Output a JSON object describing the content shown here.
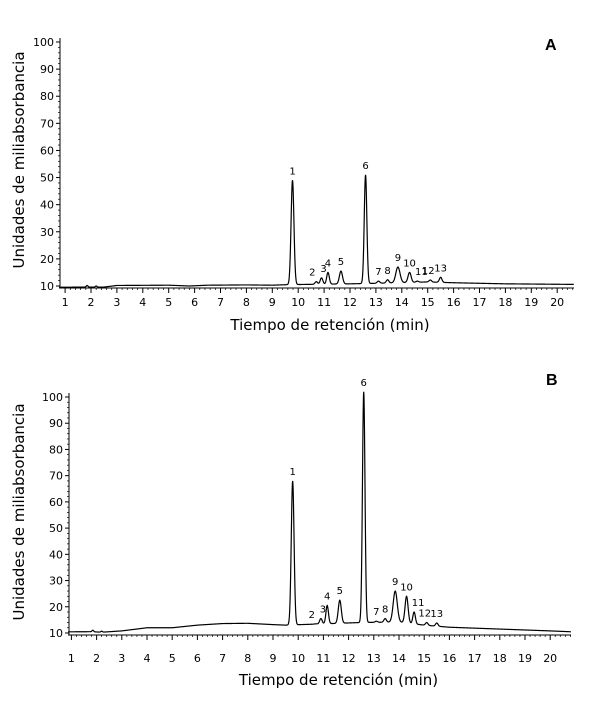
{
  "chart_data": [
    {
      "type": "line",
      "panel_label": "A",
      "xlabel": "Tiempo de retención (min)",
      "ylabel": "Unidades de miliabsorbancia",
      "xlim": [
        0,
        21
      ],
      "ylim": [
        10,
        100
      ],
      "x_ticks": [
        1,
        2,
        3,
        4,
        5,
        6,
        7,
        8,
        9,
        10,
        11,
        12,
        13,
        14,
        15,
        16,
        17,
        18,
        19,
        20
      ],
      "y_ticks": [
        10,
        20,
        30,
        40,
        50,
        60,
        70,
        80,
        90,
        100
      ],
      "grid": false,
      "series": [
        {
          "baseline": [
            [
              0,
              9.5
            ],
            [
              1.8,
              9.6
            ],
            [
              2.5,
              9.6
            ],
            [
              3,
              10.2
            ],
            [
              5,
              10.3
            ],
            [
              5.8,
              10.0
            ],
            [
              6.5,
              10.3
            ],
            [
              8,
              10.4
            ],
            [
              9,
              10.3
            ],
            [
              9.6,
              10.5
            ],
            [
              12,
              10.8
            ],
            [
              13,
              11.0
            ],
            [
              15,
              11.5
            ],
            [
              16,
              11.2
            ],
            [
              18,
              10.8
            ],
            [
              20.5,
              10.6
            ],
            [
              21,
              10.6
            ]
          ],
          "peaks": [
            {
              "label": "1",
              "x": 9.78,
              "y": 49
            },
            {
              "label": "2",
              "x": 10.7,
              "y": 11.6
            },
            {
              "label": "3",
              "x": 10.9,
              "y": 13
            },
            {
              "label": "4",
              "x": 11.15,
              "y": 15
            },
            {
              "label": "5",
              "x": 11.65,
              "y": 15.5
            },
            {
              "label": "6",
              "x": 12.6,
              "y": 51
            },
            {
              "label": "7",
              "x": 13.1,
              "y": 11.8
            },
            {
              "label": "8",
              "x": 13.45,
              "y": 12.3
            },
            {
              "label": "9",
              "x": 13.85,
              "y": 17
            },
            {
              "label": "10",
              "x": 14.3,
              "y": 15
            },
            {
              "label": "11",
              "x": 14.6,
              "y": 11.8
            },
            {
              "label": "12",
              "x": 15.1,
              "y": 12.2
            },
            {
              "label": "13",
              "x": 15.5,
              "y": 13.2
            }
          ]
        }
      ]
    },
    {
      "type": "line",
      "panel_label": "B",
      "xlabel": "Tiempo de retención (min)",
      "ylabel": "Unidades de miliabsorbancia",
      "xlim": [
        0,
        21
      ],
      "ylim": [
        10,
        100
      ],
      "x_ticks": [
        1,
        2,
        3,
        4,
        5,
        6,
        7,
        8,
        9,
        10,
        11,
        12,
        13,
        14,
        15,
        16,
        17,
        18,
        19,
        20
      ],
      "y_ticks": [
        10,
        20,
        30,
        40,
        50,
        60,
        70,
        80,
        90,
        100
      ],
      "grid": false,
      "series": [
        {
          "baseline": [
            [
              0,
              10.4
            ],
            [
              1.8,
              10.5
            ],
            [
              2.2,
              10.3
            ],
            [
              3,
              10.8
            ],
            [
              4,
              12.0
            ],
            [
              5,
              12.0
            ],
            [
              6,
              13.0
            ],
            [
              7,
              13.6
            ],
            [
              8,
              13.7
            ],
            [
              9,
              13.2
            ],
            [
              9.5,
              13.0
            ],
            [
              11,
              13.5
            ],
            [
              12.5,
              14.0
            ],
            [
              14,
              14.2
            ],
            [
              15,
              13.0
            ],
            [
              16,
              12.2
            ],
            [
              18,
              11.5
            ],
            [
              20,
              10.8
            ],
            [
              21,
              10.4
            ]
          ],
          "peaks": [
            {
              "label": "1",
              "x": 9.78,
              "y": 68
            },
            {
              "label": "2",
              "x": 10.7,
              "y": 13.5
            },
            {
              "label": "3",
              "x": 10.9,
              "y": 15.5
            },
            {
              "label": "4",
              "x": 11.15,
              "y": 20.5
            },
            {
              "label": "5",
              "x": 11.65,
              "y": 22.5
            },
            {
              "label": "6",
              "x": 12.6,
              "y": 102
            },
            {
              "label": "7",
              "x": 13.1,
              "y": 14.5
            },
            {
              "label": "8",
              "x": 13.45,
              "y": 15.5
            },
            {
              "label": "9",
              "x": 13.85,
              "y": 26
            },
            {
              "label": "10",
              "x": 14.3,
              "y": 24
            },
            {
              "label": "11",
              "x": 14.6,
              "y": 18
            },
            {
              "label": "12",
              "x": 15.1,
              "y": 14
            },
            {
              "label": "13",
              "x": 15.5,
              "y": 13.8
            }
          ]
        }
      ]
    }
  ]
}
